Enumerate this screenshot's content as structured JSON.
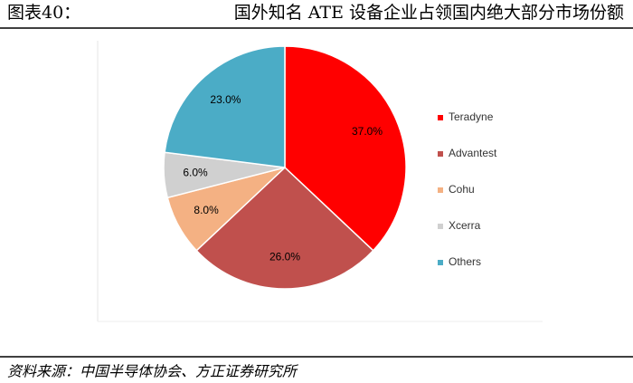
{
  "header": {
    "label": "图表40：",
    "title": "国外知名 ATE 设备企业占领国内绝大部分市场份额"
  },
  "chart_data": {
    "type": "pie",
    "categories": [
      "Teradyne",
      "Advantest",
      "Cohu",
      "Xcerra",
      "Others"
    ],
    "values": [
      37,
      26,
      8,
      6,
      23
    ],
    "value_labels": [
      "37.0%",
      "26.0%",
      "8.0%",
      "6.0%",
      "23.0%"
    ],
    "colors": [
      "#ff0000",
      "#c0504d",
      "#f4b183",
      "#d0d0d0",
      "#4bacc6"
    ],
    "legend": "right"
  },
  "source": "资料来源：中国半导体协会、方正证券研究所"
}
